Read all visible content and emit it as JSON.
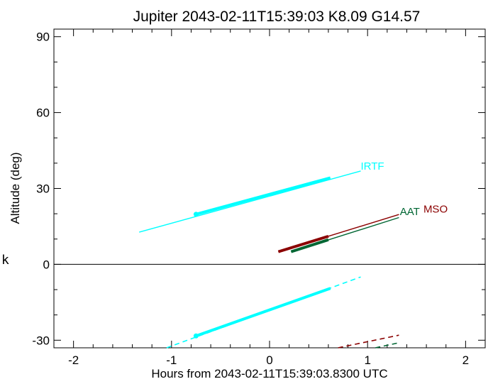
{
  "chart_data": {
    "type": "line",
    "title": "Jupiter 2043-02-11T15:39:03  K8.09  G14.57",
    "xlabel": "Hours from 2043-02-11T15:39:03.8300 UTC",
    "ylabel": "Altitude (deg)",
    "xlim": [
      -2.2,
      2.2
    ],
    "ylim": [
      -33,
      93
    ],
    "xticks": [
      -2,
      -1,
      0,
      1,
      2
    ],
    "yticks": [
      -30,
      0,
      30,
      60,
      90
    ],
    "zero_line": 0,
    "side_text": "k",
    "colors": {
      "IRTF": "#00ffff",
      "AAT": "#006633",
      "MSO": "#8b0000"
    },
    "series": [
      {
        "name": "IRTF",
        "style": "thin",
        "x": [
          -1.33,
          0.93
        ],
        "y": [
          12.7,
          36.9
        ]
      },
      {
        "name": "IRTF",
        "style": "thick",
        "x": [
          -0.75,
          0.62
        ],
        "y": [
          19.8,
          34.2
        ]
      },
      {
        "name": "IRTF",
        "style": "dashed",
        "x": [
          -1.05,
          0.93
        ],
        "y": [
          -33.0,
          -5.0
        ]
      },
      {
        "name": "IRTF",
        "style": "thick",
        "x": [
          -0.75,
          0.62
        ],
        "y": [
          -28.3,
          -9.5
        ]
      },
      {
        "name": "AAT",
        "style": "thin",
        "x": [
          0.22,
          1.32
        ],
        "y": [
          5.0,
          18.5
        ]
      },
      {
        "name": "AAT",
        "style": "thick",
        "x": [
          0.22,
          0.6
        ],
        "y": [
          5.0,
          9.7
        ]
      },
      {
        "name": "AAT",
        "style": "dashed",
        "x": [
          1.08,
          1.32
        ],
        "y": [
          -33.0,
          -31.0
        ]
      },
      {
        "name": "MSO",
        "style": "thin",
        "x": [
          0.09,
          1.32
        ],
        "y": [
          5.0,
          19.7
        ]
      },
      {
        "name": "MSO",
        "style": "thick",
        "x": [
          0.09,
          0.6
        ],
        "y": [
          5.0,
          11.1
        ]
      },
      {
        "name": "MSO",
        "style": "dashed",
        "x": [
          0.7,
          1.32
        ],
        "y": [
          -33.0,
          -28.0
        ]
      }
    ],
    "markers": [
      {
        "name": "IRTF",
        "x": -0.75,
        "y": 19.8
      },
      {
        "name": "IRTF",
        "x": -0.75,
        "y": -28.3
      }
    ],
    "labels": [
      {
        "text": "IRTF",
        "x": 0.93,
        "y": 37.5,
        "color": "#00ffff"
      },
      {
        "text": "AAT",
        "x": 1.33,
        "y": 19.5,
        "color": "#006633"
      },
      {
        "text": "MSO",
        "x": 1.57,
        "y": 20.5,
        "color": "#8b0000"
      }
    ]
  }
}
